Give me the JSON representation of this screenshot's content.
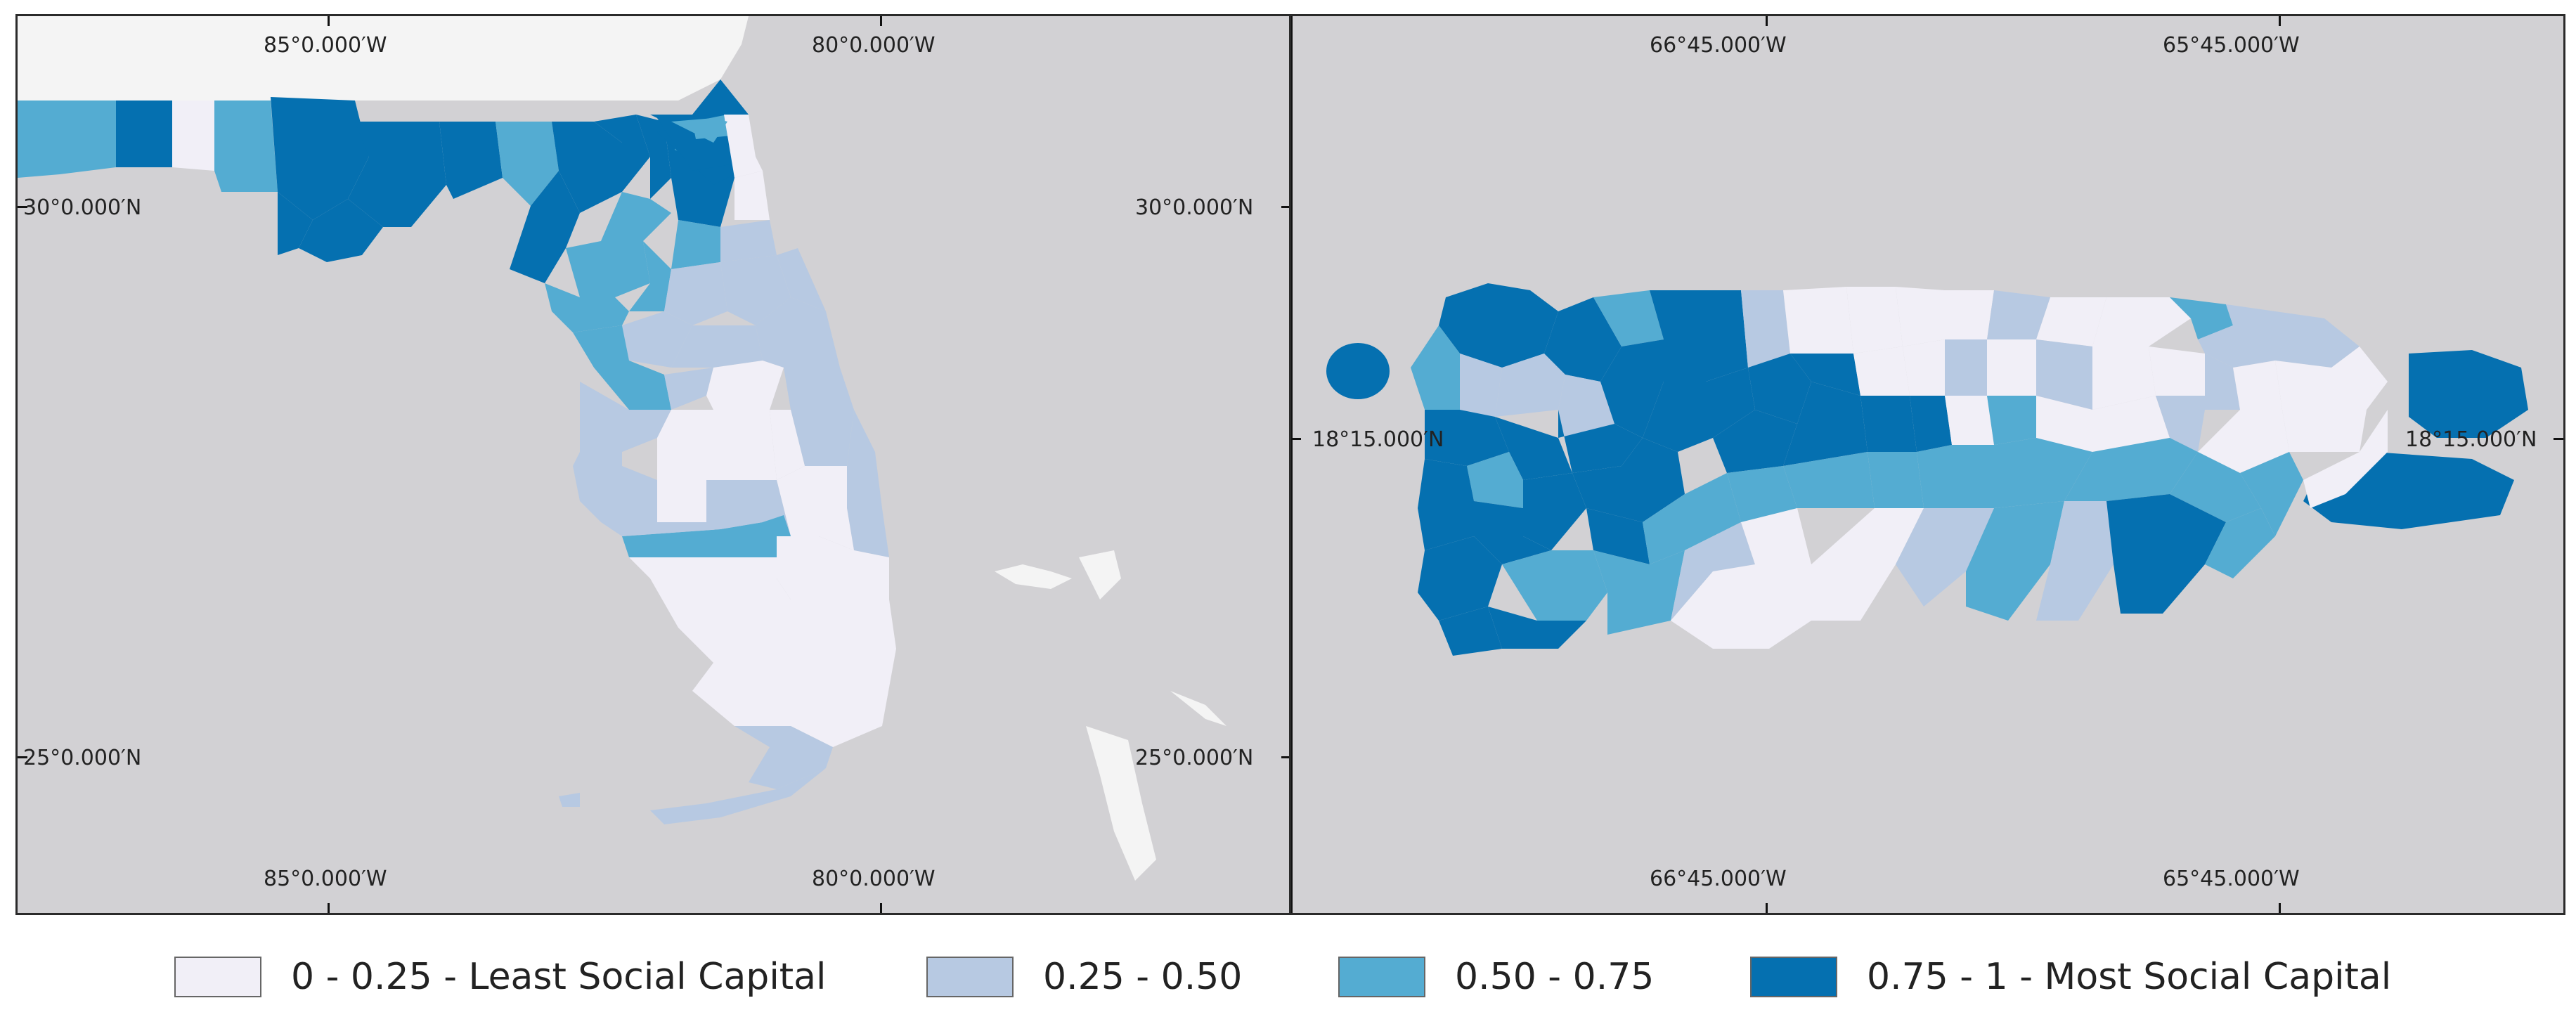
{
  "legend": {
    "title": "",
    "items": [
      {
        "label": "0 - 0.25 - Least Social Capital",
        "color": "#f1eff7"
      },
      {
        "label": "0.25 - 0.50",
        "color": "#b7c9e2"
      },
      {
        "label": "0.50 - 0.75",
        "color": "#54acd2"
      },
      {
        "label": "0.75 - 1 - Most Social Capital",
        "color": "#0570b0"
      }
    ]
  },
  "florida_map": {
    "lon_top": [
      "85°0.000′W",
      "80°0.000′W"
    ],
    "lon_bottom": [
      "85°0.000′W",
      "80°0.000′W"
    ],
    "lat_left": [
      "30°0.000′N",
      "25°0.000′N"
    ],
    "lat_right": [
      "30°0.000′N",
      "25°0.000′N"
    ]
  },
  "puerto_rico_map": {
    "lon_top": [
      "66°45.000′W",
      "65°45.000′W"
    ],
    "lon_bottom": [
      "66°45.000′W",
      "65°45.000′W"
    ],
    "lat_left": "18°15.000′N",
    "lat_right": "18°15.000′N"
  },
  "colors": {
    "ocean": "#d2d1d4",
    "land_outside": "#f4f4f4",
    "low": "#f1eff7",
    "mid_low": "#b7c9e2",
    "mid_high": "#54acd2",
    "high": "#0570b0"
  }
}
